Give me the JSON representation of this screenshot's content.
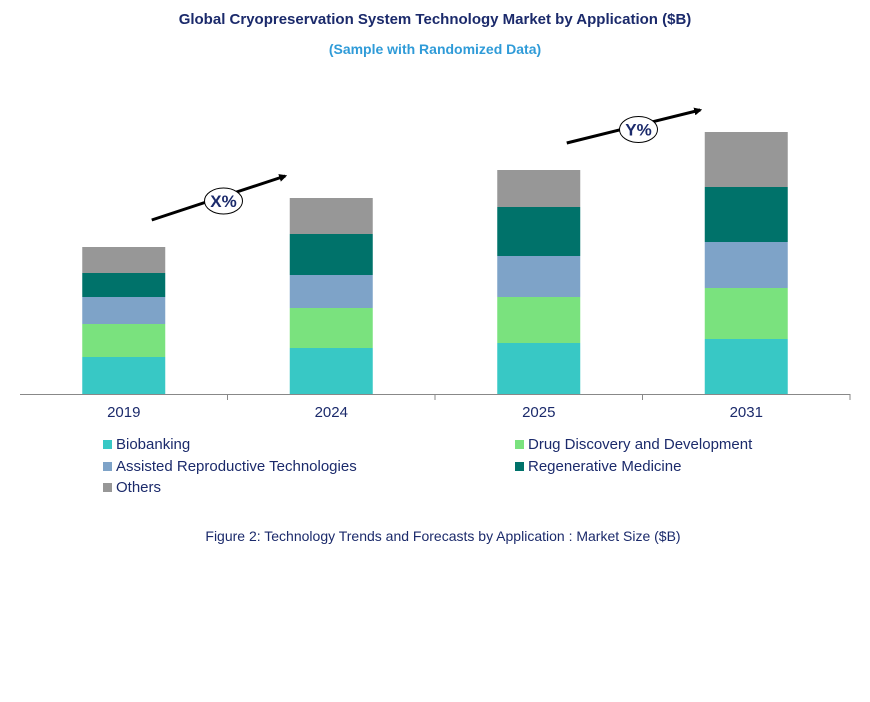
{
  "chart_data": {
    "type": "bar",
    "stacked": true,
    "title": "Global Cryopreservation System Technology Market by Application ($B)",
    "subtitle": "(Sample with Randomized Data)",
    "categories": [
      "2019",
      "2024",
      "2025",
      "2031"
    ],
    "series": [
      {
        "name": "Biobanking",
        "color": "#38c8c5",
        "values": [
          37,
          46,
          51,
          55
        ]
      },
      {
        "name": "Drug Discovery and Development",
        "color": "#7ae27e",
        "values": [
          33,
          40,
          46,
          51
        ]
      },
      {
        "name": "Assisted Reproductive Technologies",
        "color": "#7ea3c8",
        "values": [
          27,
          33,
          41,
          46
        ]
      },
      {
        "name": "Regenerative Medicine",
        "color": "#00726a",
        "values": [
          24,
          41,
          49,
          55
        ]
      },
      {
        "name": "Others",
        "color": "#979797",
        "values": [
          26,
          36,
          37,
          55
        ]
      }
    ],
    "ylim": [
      0,
      300
    ],
    "y_axis_shown": false,
    "grid": false,
    "legend_placement": "bottom",
    "annotations": [
      {
        "label": "X%",
        "from": "2019",
        "to": "2024"
      },
      {
        "label": "Y%",
        "from": "2025",
        "to": "2031"
      }
    ],
    "caption": "Figure 2: Technology Trends and Forecasts by Application : Market Size ($B)"
  }
}
